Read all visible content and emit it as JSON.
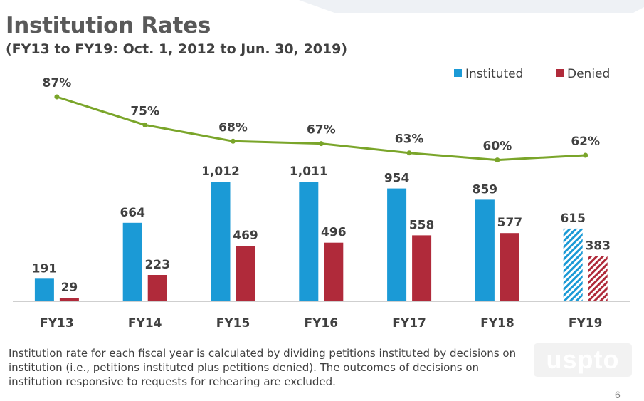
{
  "slide": {
    "title": "Institution Rates",
    "subtitle": "(FY13 to FY19: Oct. 1, 2012 to Jun. 30, 2019)",
    "footnote": "Institution rate for each fiscal year is calculated by dividing petitions instituted by decisions on institution (i.e., petitions instituted plus petitions denied). The outcomes of decisions on institution responsive to requests for rehearing are excluded.",
    "logo_text": "uspto",
    "page_number": "6"
  },
  "colors": {
    "instituted": "#1b9ad6",
    "denied": "#b02a3a",
    "rate_line": "#7aa52a",
    "axis": "#bfbfbf",
    "label_text": "#404040"
  },
  "chart_data": {
    "type": "bar",
    "categories": [
      "FY13",
      "FY14",
      "FY15",
      "FY16",
      "FY17",
      "FY18",
      "FY19"
    ],
    "series": [
      {
        "name": "Instituted",
        "values": [
          191,
          664,
          1012,
          1011,
          954,
          859,
          615
        ],
        "labels": [
          "191",
          "664",
          "1,012",
          "1,011",
          "954",
          "859",
          "615"
        ]
      },
      {
        "name": "Denied",
        "values": [
          29,
          223,
          469,
          496,
          558,
          577,
          383
        ],
        "labels": [
          "29",
          "223",
          "469",
          "496",
          "558",
          "577",
          "383"
        ]
      }
    ],
    "hatched_category": "FY19",
    "overlay_line": {
      "type": "line",
      "values": [
        87,
        75,
        68,
        67,
        63,
        60,
        62
      ],
      "labels": [
        "87%",
        "75%",
        "68%",
        "67%",
        "63%",
        "60%",
        "62%"
      ]
    },
    "legend_position": "top-right",
    "grid": false,
    "ylim": [
      0,
      1012
    ]
  }
}
